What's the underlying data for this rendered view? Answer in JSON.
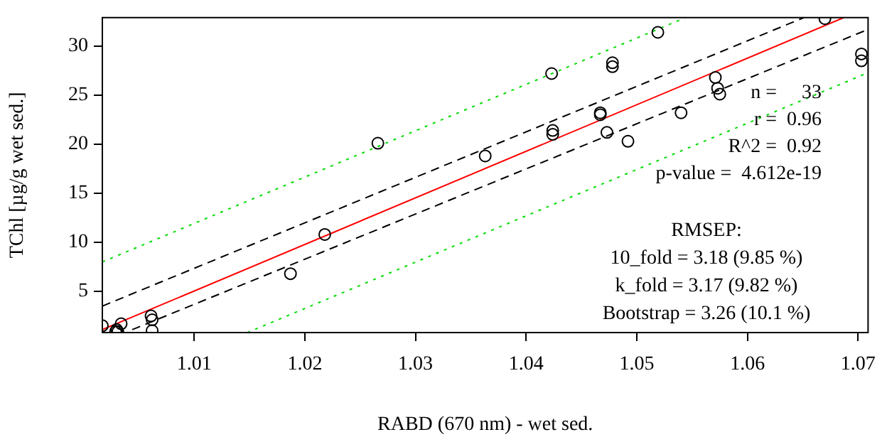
{
  "chart_data": {
    "type": "scatter",
    "xlabel": "RABD (670 nm) - wet sed.",
    "ylabel": "TChl [µg/g wet sed.]",
    "xlim": [
      1.0017,
      1.0709
    ],
    "ylim": [
      0.8,
      32.9
    ],
    "xticks": [
      1.01,
      1.02,
      1.03,
      1.04,
      1.05,
      1.06,
      1.07
    ],
    "yticks": [
      5,
      10,
      15,
      20,
      25,
      30
    ],
    "grid": false,
    "legend": false,
    "marker": "circle",
    "series": [
      {
        "color": "#000000",
        "x": [
          1.0017,
          1.0029,
          1.0031,
          1.003,
          1.0034,
          1.0061,
          1.0062,
          1.0062,
          1.0187,
          1.0218,
          1.0266,
          1.0363,
          1.0423,
          1.0424,
          1.0424,
          1.0467,
          1.0467,
          1.0478,
          1.0478,
          1.0473,
          1.0492,
          1.0519,
          1.054,
          1.0571,
          1.0573,
          1.0575,
          1.067,
          1.0703,
          1.0703
        ],
        "values": [
          1.5,
          0.9,
          0.9,
          1.1,
          1.7,
          2.5,
          2.1,
          1.0,
          6.8,
          10.8,
          20.1,
          18.8,
          27.2,
          21.4,
          21.0,
          23.2,
          23.0,
          28.3,
          27.9,
          21.2,
          20.3,
          31.4,
          23.2,
          26.8,
          25.7,
          25.1,
          32.8,
          29.2,
          28.5
        ]
      },
      {
        "type": "line",
        "color": "#ff0000",
        "line_style": "solid",
        "marker": "none",
        "x": [
          1.0017,
          1.0687
        ],
        "values": [
          1.1,
          32.9
        ]
      },
      {
        "type": "line",
        "color": "#000000",
        "line_style": "dashed",
        "marker": "none",
        "x": [
          1.0017,
          1.0651
        ],
        "values": [
          3.5,
          32.9
        ]
      },
      {
        "type": "line",
        "color": "#000000",
        "line_style": "dashed",
        "marker": "none",
        "x": [
          1.0044,
          1.0709
        ],
        "values": [
          1.1,
          31.7
        ]
      },
      {
        "type": "line",
        "color": "#00dd00",
        "line_style": "dotted",
        "marker": "none",
        "x": [
          1.0017,
          1.0544
        ],
        "values": [
          8.0,
          32.9
        ]
      },
      {
        "type": "line",
        "color": "#00dd00",
        "line_style": "dotted",
        "marker": "none",
        "x": [
          1.0148,
          1.0705
        ],
        "values": [
          0.8,
          27.1
        ]
      }
    ],
    "annotations": [
      "n =     33",
      "r =  0.96",
      "R^2 =  0.92",
      "p-value =  4.612e-19",
      "RMSEP:",
      "10_fold = 3.18 (9.85 %)",
      "k_fold = 3.17 (9.82 %)",
      "Bootstrap = 3.26 (10.1 %)"
    ]
  }
}
